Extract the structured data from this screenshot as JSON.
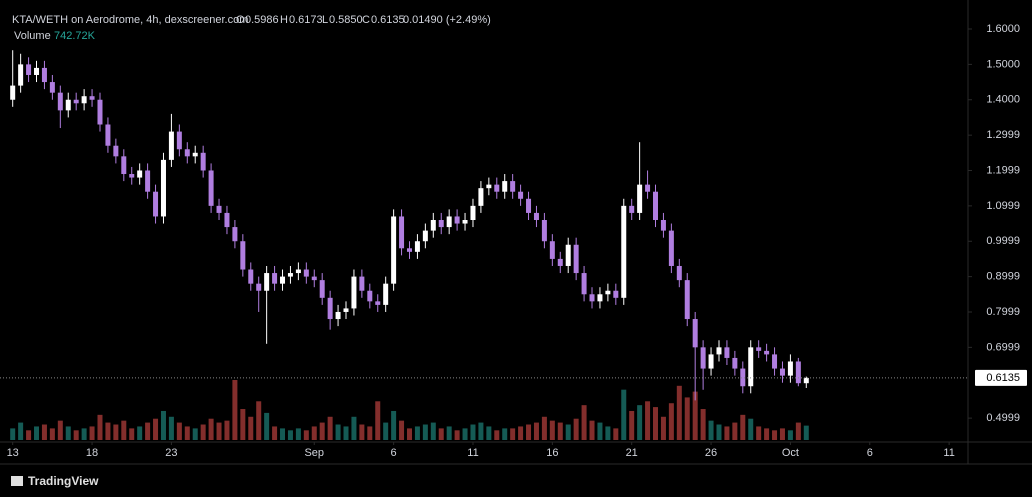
{
  "header": {
    "symbol": "KTA/WETH on Aerodrome, 4h, dexscreener.com",
    "open_label": "O",
    "open": "0.5986",
    "high_label": "H",
    "high": "0.6173",
    "low_label": "L",
    "low": "0.5850",
    "close_label": "C",
    "close": "0.6135",
    "change": "0.01490 (+2.49%)",
    "volume_label": "Volume",
    "volume": "742.72K"
  },
  "footer": {
    "brand": "TradingView"
  },
  "chart_data": {
    "type": "candlestick",
    "up_color": "#ffffff",
    "down_color": "#b07ee0",
    "volume_up_color": "#26a69a",
    "volume_down_color": "#ef5350",
    "open": [
      1.4,
      1.44,
      1.5,
      1.47,
      1.49,
      1.45,
      1.42,
      1.37,
      1.4,
      1.39,
      1.41,
      1.4,
      1.33,
      1.27,
      1.24,
      1.19,
      1.18,
      1.2,
      1.14,
      1.07,
      1.23,
      1.31,
      1.26,
      1.24,
      1.25,
      1.2,
      1.1,
      1.08,
      1.04,
      1.0,
      0.92,
      0.88,
      0.86,
      0.91,
      0.88,
      0.9,
      0.91,
      0.92,
      0.9,
      0.89,
      0.84,
      0.78,
      0.8,
      0.81,
      0.9,
      0.86,
      0.83,
      0.82,
      0.88,
      1.07,
      0.98,
      0.97,
      1.0,
      1.03,
      1.06,
      1.04,
      1.07,
      1.05,
      1.06,
      1.1,
      1.15,
      1.16,
      1.14,
      1.17,
      1.14,
      1.12,
      1.08,
      1.06,
      1.0,
      0.95,
      0.93,
      0.99,
      0.91,
      0.85,
      0.83,
      0.85,
      0.86,
      0.84,
      1.1,
      1.08,
      1.16,
      1.14,
      1.06,
      1.03,
      0.93,
      0.89,
      0.78,
      0.7,
      0.64,
      0.68,
      0.7,
      0.67,
      0.64,
      0.59,
      0.7,
      0.69,
      0.68,
      0.64,
      0.62,
      0.66,
      0.5986
    ],
    "high": [
      1.54,
      1.53,
      1.52,
      1.51,
      1.51,
      1.47,
      1.44,
      1.42,
      1.42,
      1.43,
      1.43,
      1.42,
      1.35,
      1.29,
      1.26,
      1.21,
      1.22,
      1.22,
      1.16,
      1.25,
      1.36,
      1.33,
      1.28,
      1.27,
      1.27,
      1.22,
      1.12,
      1.1,
      1.06,
      1.02,
      0.94,
      0.9,
      0.93,
      0.93,
      0.92,
      0.93,
      0.94,
      0.94,
      0.92,
      0.91,
      0.86,
      0.82,
      0.83,
      0.92,
      0.92,
      0.88,
      0.85,
      0.9,
      1.09,
      1.09,
      1.0,
      1.02,
      1.05,
      1.08,
      1.08,
      1.09,
      1.09,
      1.08,
      1.12,
      1.17,
      1.18,
      1.18,
      1.19,
      1.19,
      1.16,
      1.14,
      1.1,
      1.08,
      1.02,
      0.97,
      1.01,
      1.01,
      0.93,
      0.87,
      0.87,
      0.88,
      0.88,
      1.12,
      1.12,
      1.28,
      1.2,
      1.16,
      1.08,
      1.05,
      0.95,
      0.91,
      0.8,
      0.72,
      0.7,
      0.72,
      0.72,
      0.69,
      0.66,
      0.72,
      0.72,
      0.71,
      0.7,
      0.66,
      0.68,
      0.67,
      0.6173
    ],
    "low": [
      1.38,
      1.42,
      1.45,
      1.45,
      1.43,
      1.4,
      1.32,
      1.35,
      1.37,
      1.37,
      1.38,
      1.31,
      1.25,
      1.22,
      1.17,
      1.16,
      1.16,
      1.12,
      1.05,
      1.05,
      1.21,
      1.24,
      1.22,
      1.22,
      1.18,
      1.08,
      1.06,
      1.02,
      0.98,
      0.9,
      0.86,
      0.8,
      0.71,
      0.86,
      0.86,
      0.88,
      0.89,
      0.88,
      0.87,
      0.82,
      0.75,
      0.76,
      0.78,
      0.79,
      0.84,
      0.81,
      0.8,
      0.8,
      0.86,
      0.96,
      0.95,
      0.95,
      0.98,
      1.01,
      1.02,
      1.02,
      1.03,
      1.03,
      1.04,
      1.08,
      1.13,
      1.12,
      1.12,
      1.12,
      1.1,
      1.06,
      1.04,
      0.98,
      0.93,
      0.91,
      0.91,
      0.89,
      0.83,
      0.81,
      0.81,
      0.83,
      0.82,
      0.82,
      1.06,
      1.06,
      1.12,
      1.04,
      1.01,
      0.91,
      0.87,
      0.76,
      0.55,
      0.58,
      0.62,
      0.66,
      0.65,
      0.62,
      0.57,
      0.57,
      0.67,
      0.66,
      0.62,
      0.6,
      0.6,
      0.59,
      0.585
    ],
    "close": [
      1.44,
      1.5,
      1.47,
      1.49,
      1.45,
      1.42,
      1.37,
      1.4,
      1.39,
      1.41,
      1.4,
      1.33,
      1.27,
      1.24,
      1.19,
      1.18,
      1.2,
      1.14,
      1.07,
      1.23,
      1.31,
      1.26,
      1.24,
      1.25,
      1.2,
      1.1,
      1.08,
      1.04,
      1.0,
      0.92,
      0.88,
      0.86,
      0.91,
      0.88,
      0.9,
      0.91,
      0.92,
      0.9,
      0.89,
      0.84,
      0.78,
      0.8,
      0.81,
      0.9,
      0.86,
      0.83,
      0.82,
      0.88,
      1.07,
      0.98,
      0.97,
      1.0,
      1.03,
      1.06,
      1.04,
      1.07,
      1.05,
      1.06,
      1.1,
      1.15,
      1.16,
      1.14,
      1.17,
      1.14,
      1.12,
      1.08,
      1.06,
      1.0,
      0.95,
      0.93,
      0.99,
      0.91,
      0.85,
      0.83,
      0.85,
      0.86,
      0.84,
      1.1,
      1.08,
      1.16,
      1.14,
      1.06,
      1.03,
      0.93,
      0.89,
      0.78,
      0.7,
      0.64,
      0.68,
      0.7,
      0.67,
      0.64,
      0.59,
      0.7,
      0.69,
      0.68,
      0.64,
      0.62,
      0.66,
      0.5986,
      0.6135
    ],
    "volume": [
      600000,
      900000,
      500000,
      700000,
      800000,
      600000,
      1000000,
      700000,
      500000,
      600000,
      700000,
      1300000,
      900000,
      800000,
      1000000,
      600000,
      700000,
      900000,
      1100000,
      1500000,
      1200000,
      900000,
      700000,
      600000,
      800000,
      1100000,
      900000,
      1000000,
      3100000,
      1600000,
      1200000,
      2000000,
      1400000,
      700000,
      600000,
      500000,
      600000,
      500000,
      700000,
      900000,
      1200000,
      800000,
      700000,
      1200000,
      800000,
      700000,
      2000000,
      900000,
      1500000,
      1000000,
      600000,
      700000,
      800000,
      900000,
      600000,
      700000,
      500000,
      600000,
      800000,
      900000,
      700000,
      500000,
      600000,
      600000,
      700000,
      800000,
      900000,
      1200000,
      1000000,
      900000,
      800000,
      1100000,
      1800000,
      1000000,
      900000,
      700000,
      600000,
      2600000,
      1500000,
      1800000,
      2000000,
      1700000,
      1200000,
      1900000,
      2800000,
      2200000,
      2500000,
      1600000,
      1000000,
      800000,
      700000,
      900000,
      1300000,
      1100000,
      700000,
      600000,
      500000,
      600000,
      500000,
      900000,
      742720
    ],
    "ylim": [
      0.438,
      1.682
    ],
    "yticks": [
      {
        "value": 1.6,
        "label": "1.6000"
      },
      {
        "value": 1.5,
        "label": "1.5000"
      },
      {
        "value": 1.4,
        "label": "1.4000"
      },
      1.2999,
      1.1999,
      1.0999,
      0.9999,
      0.8999,
      0.7999,
      0.6999,
      0.4999
    ],
    "xlim": [
      -1.6,
      120
    ],
    "xticks": [
      {
        "value": 0,
        "label": "13"
      },
      {
        "value": 10,
        "label": "18"
      },
      {
        "value": 20,
        "label": "23"
      },
      {
        "value": 38,
        "label": "Sep"
      },
      {
        "value": 48,
        "label": "6"
      },
      {
        "value": 58,
        "label": "11"
      },
      {
        "value": 68,
        "label": "16"
      },
      {
        "value": 78,
        "label": "21"
      },
      {
        "value": 88,
        "label": "26"
      },
      {
        "value": 98,
        "label": "Oct"
      },
      {
        "value": 108,
        "label": "6"
      },
      {
        "value": 118,
        "label": "11"
      }
    ],
    "grid": false
  }
}
